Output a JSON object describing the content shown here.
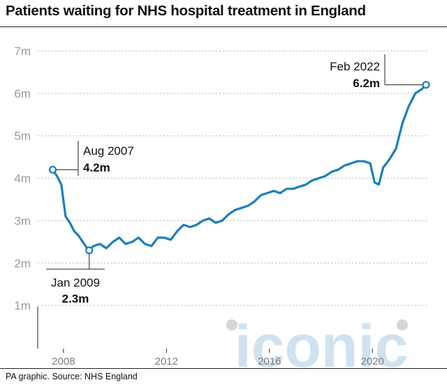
{
  "title": "Patients waiting for NHS hospital treatment in England",
  "source": "PA graphic. Source: NHS England",
  "watermark": "iconic",
  "colors": {
    "line": "#1b7fb8",
    "grid": "#b5b5b5",
    "axis": "#222222",
    "watermark": "#c5dcec"
  },
  "chart_data": {
    "type": "line",
    "title": "Patients waiting for NHS hospital treatment in England",
    "xlabel": "",
    "ylabel": "",
    "y_unit": "m",
    "ylim": [
      0,
      7
    ],
    "xlim": [
      "2007-01",
      "2022-02"
    ],
    "x_ticks": [
      "2008",
      "2012",
      "2016",
      "2020"
    ],
    "y_ticks": [
      "1m",
      "2m",
      "3m",
      "4m",
      "5m",
      "6m",
      "7m"
    ],
    "grid": "horizontal dotted",
    "series": [
      {
        "x": [
          "2007-08",
          "2007-10",
          "2007-12",
          "2008-02",
          "2008-04",
          "2008-06",
          "2008-08",
          "2008-10",
          "2008-12",
          "2009-01",
          "2009-03",
          "2009-06",
          "2009-09",
          "2009-12",
          "2010-03",
          "2010-06",
          "2010-09",
          "2010-12",
          "2011-03",
          "2011-06",
          "2011-09",
          "2011-12",
          "2012-03",
          "2012-06",
          "2012-09",
          "2012-12",
          "2013-03",
          "2013-06",
          "2013-09",
          "2013-12",
          "2014-03",
          "2014-06",
          "2014-09",
          "2014-12",
          "2015-03",
          "2015-06",
          "2015-09",
          "2015-12",
          "2016-03",
          "2016-06",
          "2016-09",
          "2016-12",
          "2017-03",
          "2017-06",
          "2017-09",
          "2017-12",
          "2018-03",
          "2018-06",
          "2018-09",
          "2018-12",
          "2019-03",
          "2019-06",
          "2019-09",
          "2019-12",
          "2020-02",
          "2020-04",
          "2020-06",
          "2020-09",
          "2020-12",
          "2021-03",
          "2021-06",
          "2021-09",
          "2021-12",
          "2022-02"
        ],
        "y": [
          4.2,
          4.05,
          3.85,
          3.1,
          2.95,
          2.75,
          2.65,
          2.5,
          2.35,
          2.3,
          2.4,
          2.45,
          2.35,
          2.5,
          2.6,
          2.45,
          2.5,
          2.6,
          2.45,
          2.4,
          2.6,
          2.6,
          2.55,
          2.75,
          2.9,
          2.85,
          2.9,
          3.0,
          3.05,
          2.95,
          3.0,
          3.15,
          3.25,
          3.3,
          3.35,
          3.45,
          3.6,
          3.65,
          3.7,
          3.65,
          3.75,
          3.75,
          3.8,
          3.85,
          3.95,
          4.0,
          4.05,
          4.15,
          4.2,
          4.3,
          4.35,
          4.4,
          4.4,
          4.35,
          3.9,
          3.85,
          4.25,
          4.45,
          4.7,
          5.3,
          5.7,
          6.0,
          6.1,
          6.2
        ]
      }
    ],
    "annotations": [
      {
        "date": "Aug 2007",
        "value": "4.2m"
      },
      {
        "date": "Jan 2009",
        "value": "2.3m"
      },
      {
        "date": "Feb 2022",
        "value": "6.2m"
      }
    ]
  }
}
